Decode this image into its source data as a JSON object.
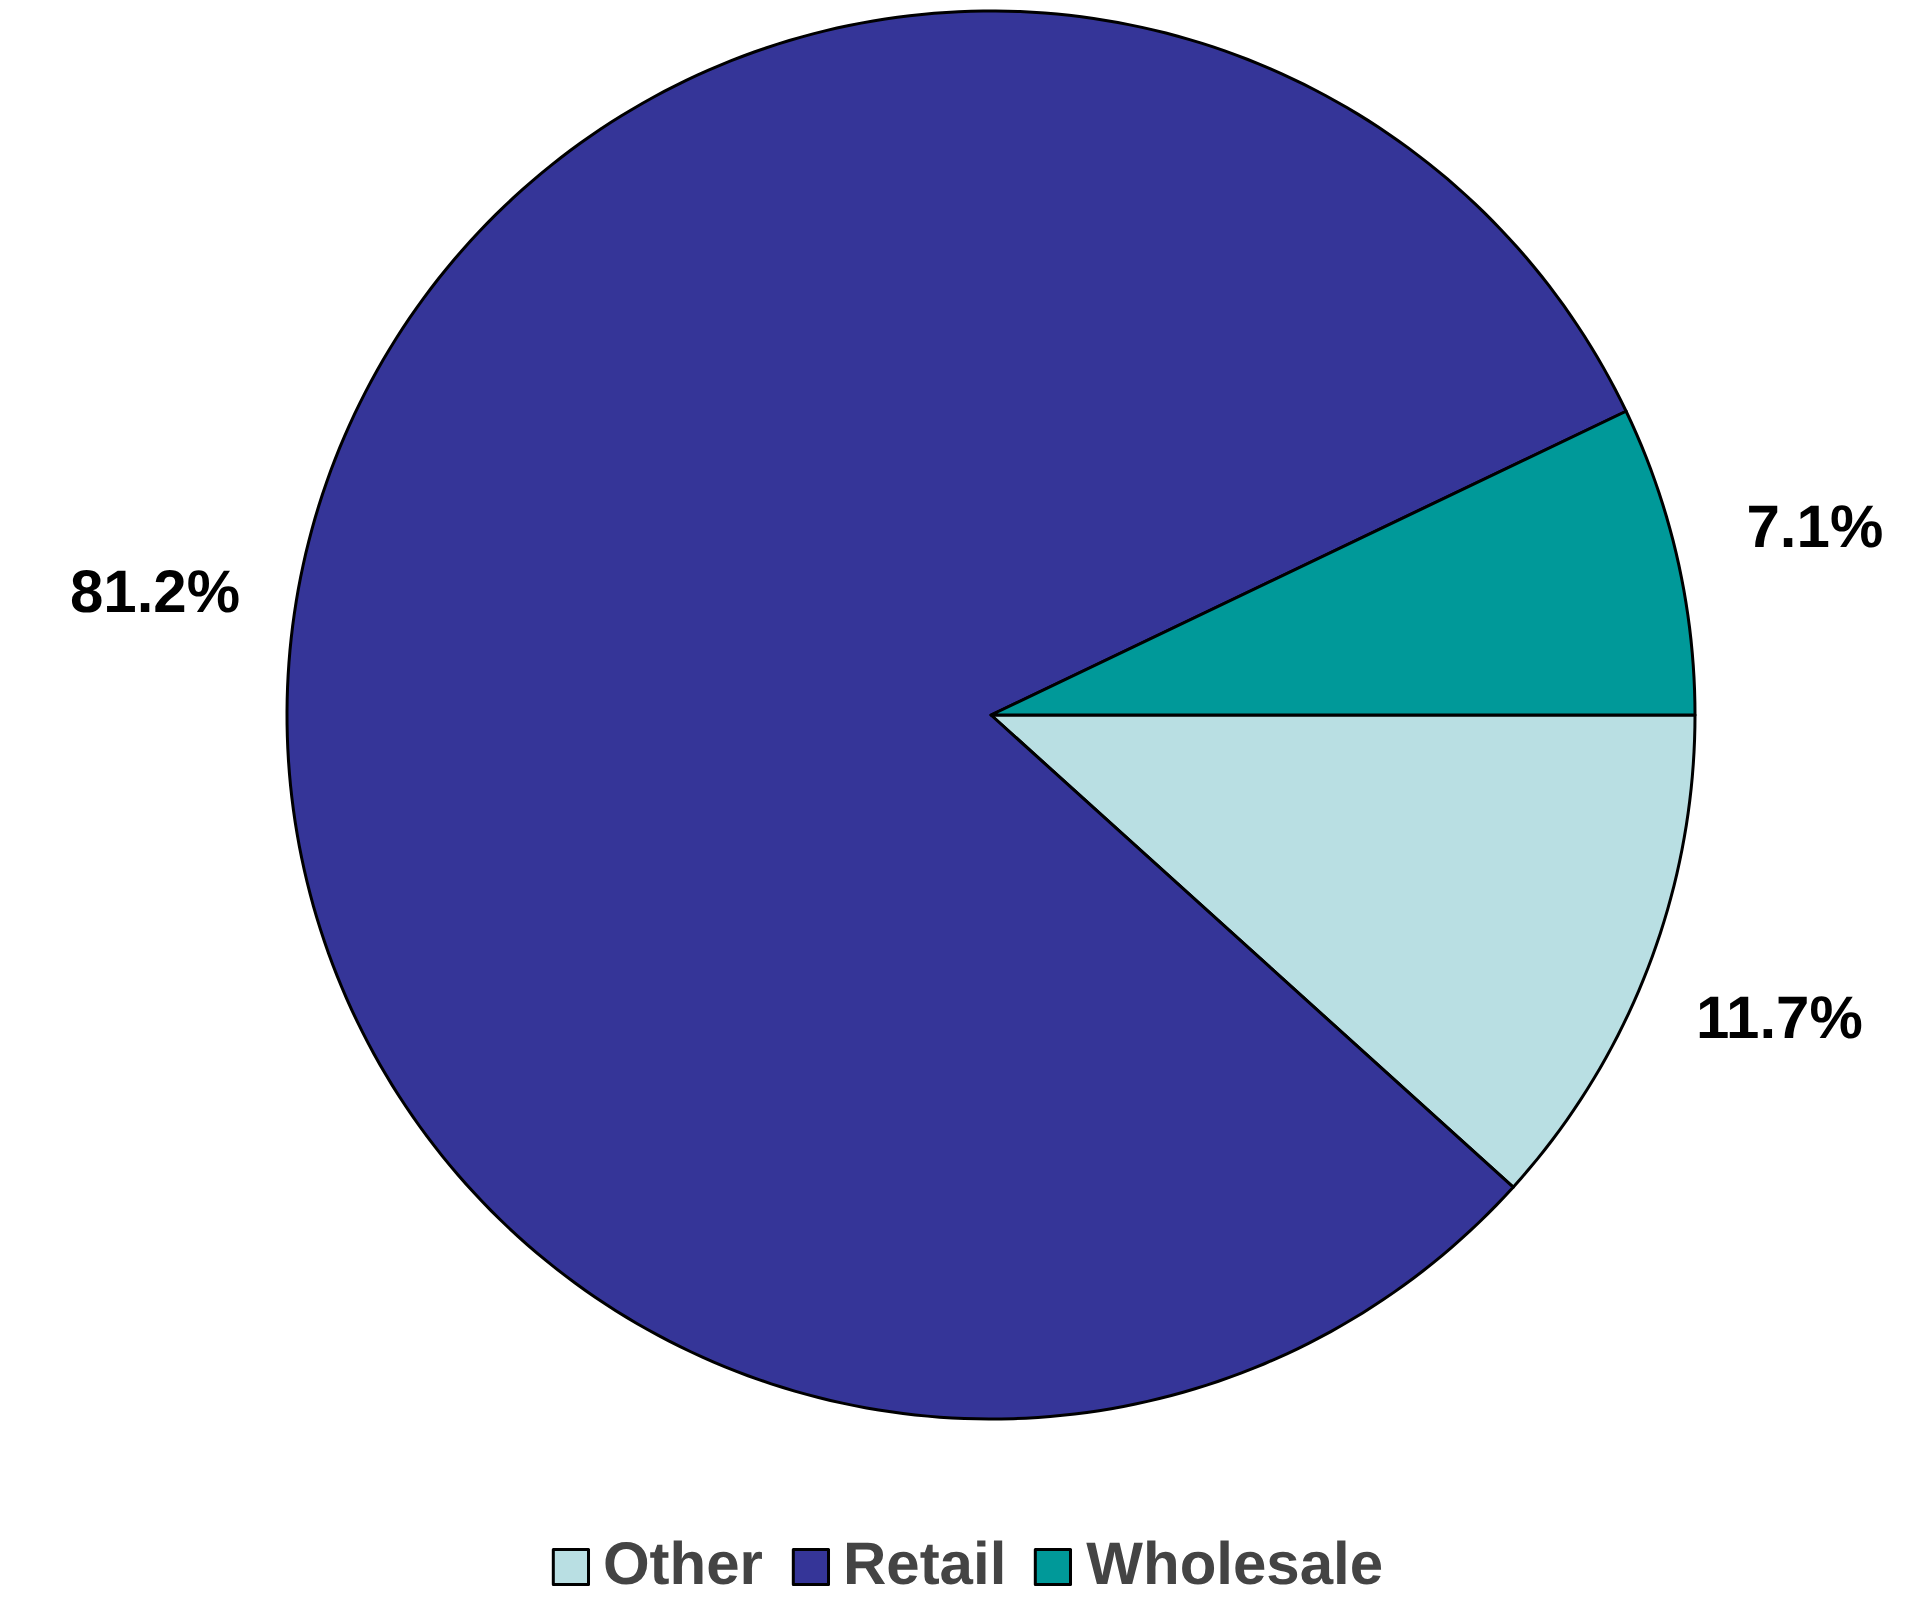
{
  "chart_data": {
    "type": "pie",
    "categories": [
      "Other",
      "Retail",
      "Wholesale"
    ],
    "values": [
      11.7,
      81.2,
      7.1
    ],
    "colors": [
      "#b9dfe3",
      "#353598",
      "#009999"
    ],
    "value_labels": [
      "11.7%",
      "81.2%",
      "7.1%"
    ],
    "legend": "bottom"
  }
}
